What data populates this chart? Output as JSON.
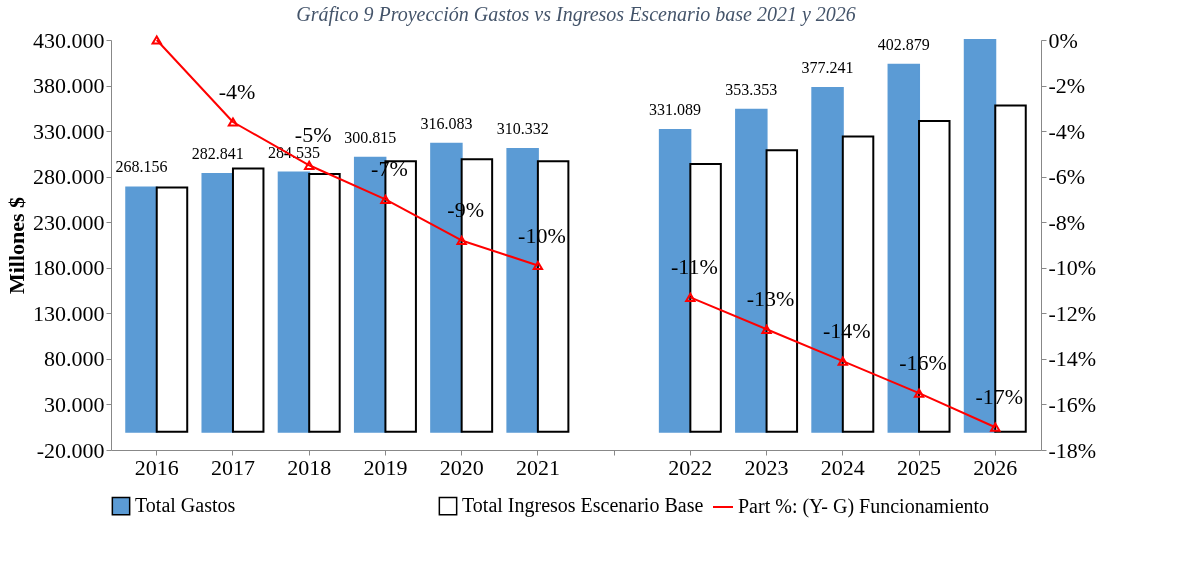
{
  "chart_data": {
    "type": "bar",
    "title": "Gráfico 9 Proyección Gastos vs Ingresos Escenario base 2021 y 2026",
    "ylabel": "Millones $",
    "categories": [
      "2016",
      "2017",
      "2018",
      "2019",
      "2020",
      "2021",
      null,
      "2022",
      "2023",
      "2024",
      "2025",
      "2026"
    ],
    "series": [
      {
        "name": "Total Gastos",
        "color": "#5b9bd5",
        "values": [
          268156,
          282841,
          284535,
          300815,
          316083,
          310332,
          null,
          331089,
          353353,
          377241,
          402879,
          430000
        ],
        "value_labels": [
          "268.156",
          "282.841",
          "284.535",
          "300.815",
          "316.083",
          "310.332",
          null,
          "331.089",
          "353.353",
          "377.241",
          "402.879",
          null
        ]
      },
      {
        "name": "Total Ingresos Escenario Base",
        "color": "#ffffff",
        "values": [
          268000,
          289000,
          283000,
          297000,
          299000,
          297000,
          null,
          294000,
          309000,
          324000,
          341000,
          358000
        ]
      },
      {
        "name": "Part %: (Y- G) Funcionamiento",
        "type": "line",
        "axis": "y2",
        "color": "#ff0000",
        "values": [
          0,
          -3.6,
          -5.5,
          -7.0,
          -8.8,
          -9.9,
          null,
          -11.3,
          -12.7,
          -14.1,
          -15.5,
          -17.0
        ],
        "value_labels": [
          null,
          "-4%",
          "-5%",
          "-7%",
          "-9%",
          "-10%",
          null,
          "-11%",
          "-13%",
          "-14%",
          "-16%",
          "-17%"
        ]
      }
    ],
    "ylim": [
      -20000,
      430000
    ],
    "yticks": [
      {
        "value": -20000,
        "label": "-20.000"
      },
      {
        "value": 30000,
        "label": "30.000"
      },
      {
        "value": 80000,
        "label": "80.000"
      },
      {
        "value": 130000,
        "label": "130.000"
      },
      {
        "value": 180000,
        "label": "180.000"
      },
      {
        "value": 230000,
        "label": "230.000"
      },
      {
        "value": 280000,
        "label": "280.000"
      },
      {
        "value": 330000,
        "label": "330.000"
      },
      {
        "value": 380000,
        "label": "380.000"
      },
      {
        "value": 430000,
        "label": "430.000"
      }
    ],
    "y2lim": [
      -18,
      0
    ],
    "y2ticks": [
      {
        "value": -18,
        "label": "-18%"
      },
      {
        "value": -16,
        "label": "-16%"
      },
      {
        "value": -14,
        "label": "-14%"
      },
      {
        "value": -12,
        "label": "-12%"
      },
      {
        "value": -10,
        "label": "-10%"
      },
      {
        "value": -8,
        "label": "-8%"
      },
      {
        "value": -6,
        "label": "-6%"
      },
      {
        "value": -4,
        "label": "-4%"
      },
      {
        "value": -2,
        "label": "-2%"
      },
      {
        "value": 0,
        "label": "0%"
      }
    ],
    "marker": "triangle",
    "line_style": "solid",
    "grid": false,
    "legend": "bottom"
  }
}
